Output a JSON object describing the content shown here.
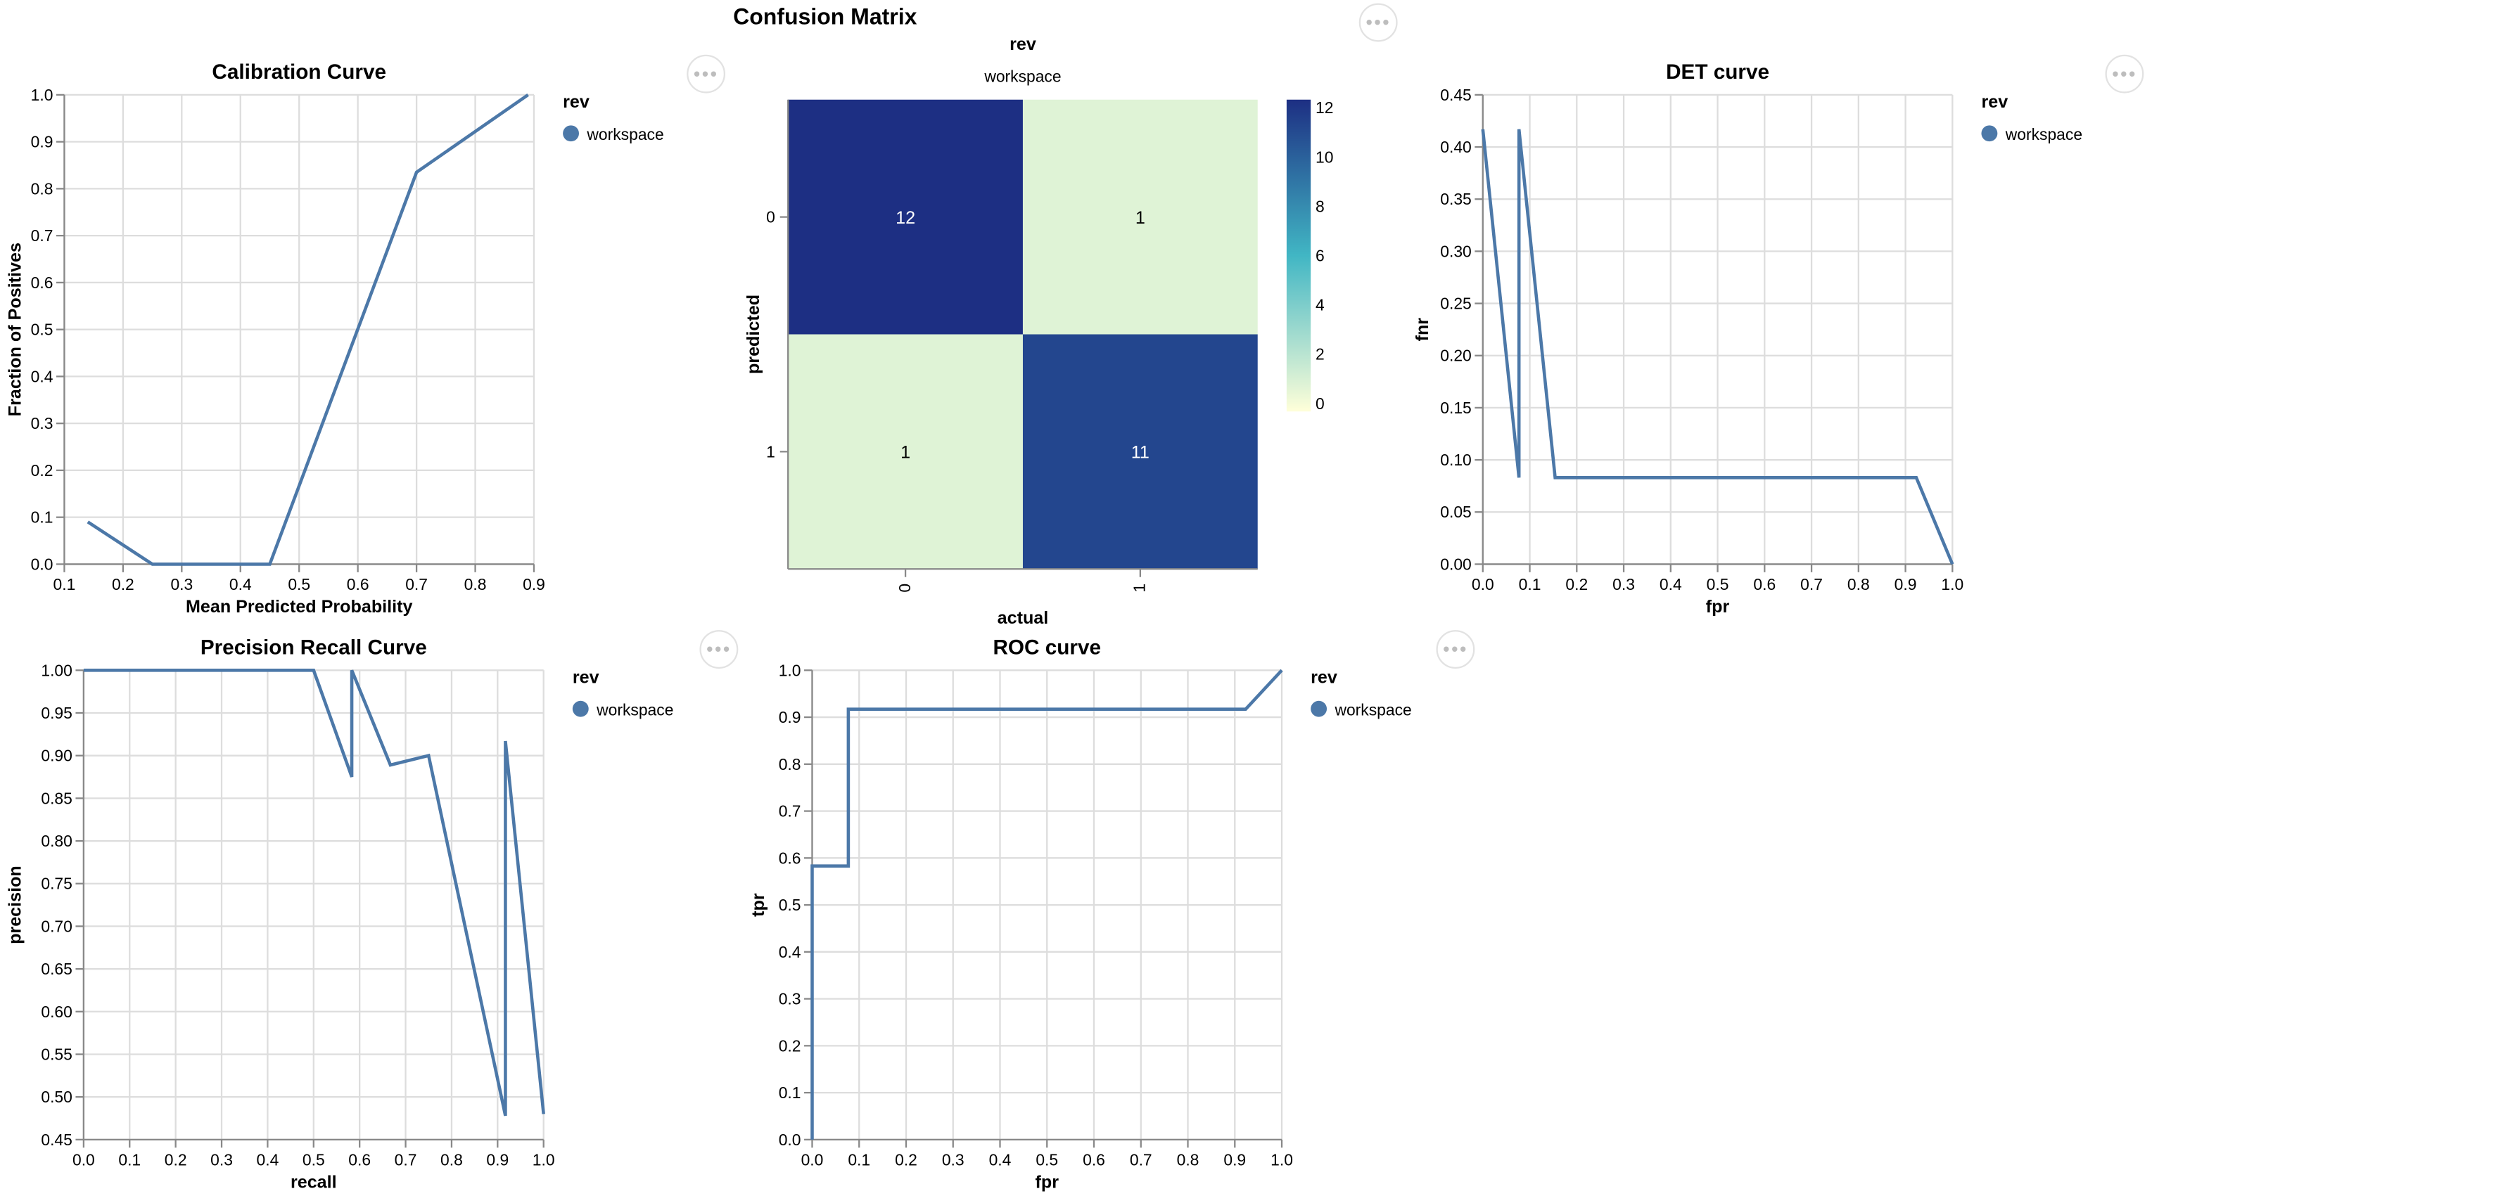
{
  "charts": {
    "calibration": {
      "chart_data": {
        "type": "line",
        "title": "Calibration Curve",
        "xlabel": "Mean Predicted Probability",
        "ylabel": "Fraction of Positives",
        "xlim": [
          0.1,
          0.9
        ],
        "ylim": [
          0.0,
          1.0
        ],
        "xticks": [
          "0.1",
          "0.2",
          "0.3",
          "0.4",
          "0.5",
          "0.6",
          "0.7",
          "0.8",
          "0.9"
        ],
        "yticks": [
          "0.0",
          "0.1",
          "0.2",
          "0.3",
          "0.4",
          "0.5",
          "0.6",
          "0.7",
          "0.8",
          "0.9",
          "1.0"
        ],
        "grid": true,
        "legend": {
          "title": "rev",
          "entries": [
            "workspace"
          ],
          "placement": "right"
        },
        "series": [
          {
            "name": "workspace",
            "x": [
              0.14,
              0.25,
              0.45,
              0.7,
              0.89
            ],
            "y": [
              0.09,
              0.0,
              0.0,
              0.835,
              1.0
            ]
          }
        ]
      }
    },
    "confusion": {
      "chart_data": {
        "type": "heatmap",
        "title": "Confusion Matrix",
        "subtitle": "rev",
        "facet_label": "workspace",
        "xlabel": "actual",
        "ylabel": "predicted",
        "x_categories": [
          "0",
          "1"
        ],
        "y_categories": [
          "0",
          "1"
        ],
        "values": [
          [
            12,
            1
          ],
          [
            1,
            11
          ]
        ],
        "colorbar": {
          "min": 0,
          "max": 12,
          "ticks": [
            "12",
            "10",
            "8",
            "6",
            "4",
            "2",
            "0"
          ]
        }
      }
    },
    "det": {
      "chart_data": {
        "type": "line",
        "title": "DET curve",
        "xlabel": "fpr",
        "ylabel": "fnr",
        "xlim": [
          0.0,
          1.0
        ],
        "ylim": [
          0.0,
          0.45
        ],
        "xticks": [
          "0.0",
          "0.1",
          "0.2",
          "0.3",
          "0.4",
          "0.5",
          "0.6",
          "0.7",
          "0.8",
          "0.9",
          "1.0"
        ],
        "yticks": [
          "0.00",
          "0.05",
          "0.10",
          "0.15",
          "0.20",
          "0.25",
          "0.30",
          "0.35",
          "0.40",
          "0.45"
        ],
        "grid": true,
        "legend": {
          "title": "rev",
          "entries": [
            "workspace"
          ],
          "placement": "right"
        },
        "series": [
          {
            "name": "workspace",
            "x": [
              0.0,
              0.077,
              0.077,
              0.077,
              0.154,
              0.923,
              1.0
            ],
            "y": [
              0.417,
              0.083,
              0.417,
              0.417,
              0.083,
              0.083,
              0.0
            ]
          }
        ]
      }
    },
    "pr": {
      "chart_data": {
        "type": "line",
        "title": "Precision Recall Curve",
        "xlabel": "recall",
        "ylabel": "precision",
        "xlim": [
          0.0,
          1.0
        ],
        "ylim": [
          0.45,
          1.0
        ],
        "xticks": [
          "0.0",
          "0.1",
          "0.2",
          "0.3",
          "0.4",
          "0.5",
          "0.6",
          "0.7",
          "0.8",
          "0.9",
          "1.0"
        ],
        "yticks": [
          "0.45",
          "0.50",
          "0.55",
          "0.60",
          "0.65",
          "0.70",
          "0.75",
          "0.80",
          "0.85",
          "0.90",
          "0.95",
          "1.00"
        ],
        "grid": true,
        "legend": {
          "title": "rev",
          "entries": [
            "workspace"
          ],
          "placement": "right"
        },
        "series": [
          {
            "name": "workspace",
            "x": [
              0.0,
              0.083,
              0.5,
              0.583,
              0.583,
              0.667,
              0.75,
              0.917,
              0.917,
              1.0
            ],
            "y": [
              1.0,
              1.0,
              1.0,
              0.875,
              1.0,
              0.889,
              0.9,
              0.478,
              0.917,
              0.48
            ]
          }
        ]
      }
    },
    "roc": {
      "chart_data": {
        "type": "line",
        "title": "ROC curve",
        "xlabel": "fpr",
        "ylabel": "tpr",
        "xlim": [
          0.0,
          1.0
        ],
        "ylim": [
          0.0,
          1.0
        ],
        "xticks": [
          "0.0",
          "0.1",
          "0.2",
          "0.3",
          "0.4",
          "0.5",
          "0.6",
          "0.7",
          "0.8",
          "0.9",
          "1.0"
        ],
        "yticks": [
          "0.0",
          "0.1",
          "0.2",
          "0.3",
          "0.4",
          "0.5",
          "0.6",
          "0.7",
          "0.8",
          "0.9",
          "1.0"
        ],
        "grid": true,
        "legend": {
          "title": "rev",
          "entries": [
            "workspace"
          ],
          "placement": "right"
        },
        "series": [
          {
            "name": "workspace",
            "x": [
              0.0,
              0.0,
              0.077,
              0.077,
              0.923,
              1.0
            ],
            "y": [
              0.0,
              0.583,
              0.583,
              0.917,
              0.917,
              1.0
            ]
          }
        ]
      }
    }
  },
  "colors": {
    "line": "#4c78a8",
    "grid": "#dddddd",
    "axis": "#888888",
    "text": "#000000",
    "legend_symbol": "#4c78a8",
    "heat_low": "#ffffd9",
    "heat_mid": "#41b6c4",
    "heat_high": "#1d2f83"
  },
  "menu": {
    "label": "•••"
  }
}
